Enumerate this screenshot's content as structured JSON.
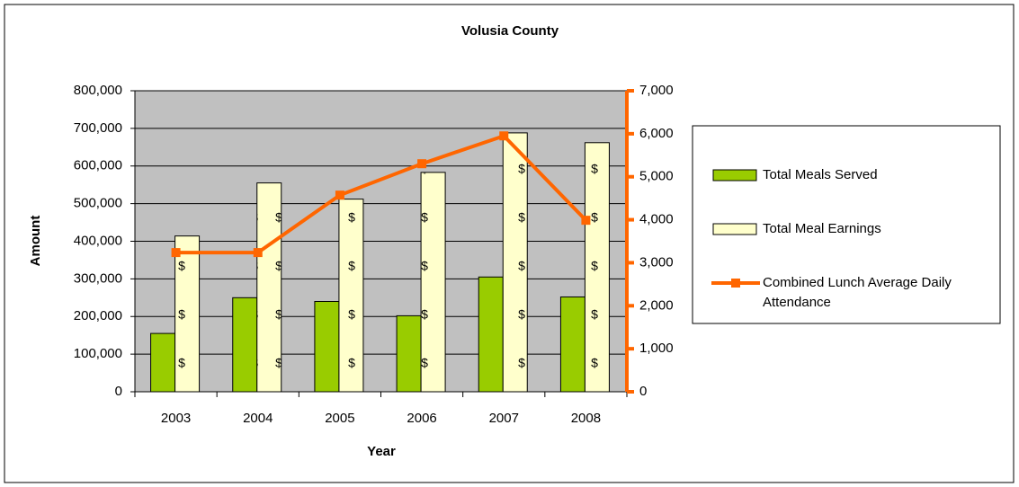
{
  "chart_data": {
    "type": "bar-line",
    "title": "Volusia County",
    "x_label": "Year",
    "y_label": "Amount",
    "categories": [
      "2003",
      "2004",
      "2005",
      "2006",
      "2007",
      "2008"
    ],
    "series": [
      {
        "name": "Total Meals Served",
        "type": "bar",
        "color": "#99cc00",
        "values": [
          155000,
          250000,
          240000,
          202000,
          305000,
          252000
        ]
      },
      {
        "name": "Total Meal Earnings",
        "type": "bar",
        "color": "#ffffcc",
        "values": [
          414000,
          555000,
          512000,
          583000,
          688000,
          662000
        ]
      },
      {
        "name": "Combined Lunch Average Daily Attendance",
        "type": "line",
        "axis": "y2",
        "color": "#ff6600",
        "values": [
          3237,
          3237,
          4573,
          5303,
          5950,
          3988
        ]
      }
    ],
    "ylim": [
      0,
      800000
    ],
    "yticks": [
      0,
      {
        "value": 100000,
        "label": "100,000"
      },
      {
        "value": 200000,
        "label": "200,000"
      },
      {
        "value": 300000,
        "label": "300,000"
      },
      {
        "value": 400000,
        "label": "400,000"
      },
      {
        "value": 500000,
        "label": "500,000"
      },
      {
        "value": 600000,
        "label": "600,000"
      },
      {
        "value": 700000,
        "label": "700,000"
      },
      {
        "value": 800000,
        "label": "800,000"
      }
    ],
    "y2lim": [
      0,
      7000
    ],
    "y2ticks": [
      0,
      {
        "value": 1000,
        "label": "1,000"
      },
      {
        "value": 2000,
        "label": "2,000"
      },
      {
        "value": 3000,
        "label": "3,000"
      },
      {
        "value": 4000,
        "label": "4,000"
      },
      {
        "value": 5000,
        "label": "5,000"
      },
      {
        "value": 6000,
        "label": "6,000"
      },
      {
        "value": 7000,
        "label": "7,000"
      }
    ],
    "grid": true,
    "legend": "right"
  }
}
